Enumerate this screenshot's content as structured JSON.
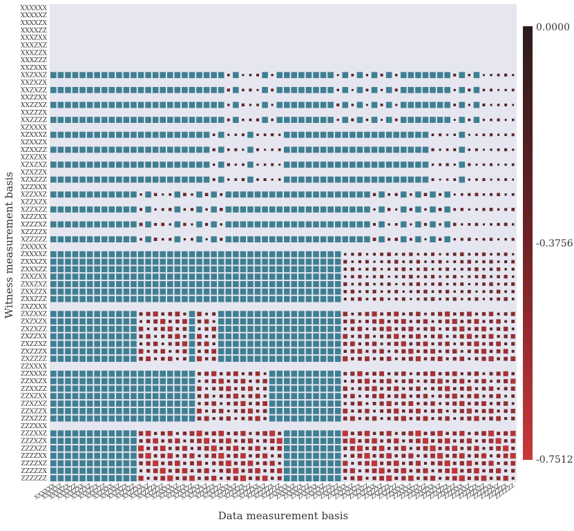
{
  "chart_data": {
    "type": "heatmap",
    "title": "",
    "xlabel": "Data measurement basis",
    "ylabel": "Witness measurement basis",
    "x_categories": [
      "XXXXXX",
      "XXXXXZ",
      "XXXXZX",
      "XXXXZZ",
      "XXXZXX",
      "XXXZXZ",
      "XXXZZX",
      "XXXZZZ",
      "XXZXXX",
      "XXZXXZ",
      "XXZXZX",
      "XXZXZZ",
      "XXZZXX",
      "XXZZXZ",
      "XXZZZX",
      "XXZZZZ",
      "XZXXXX",
      "XZXXXZ",
      "XZXXZX",
      "XZXXZZ",
      "XZXZXX",
      "XZXZXZ",
      "XZXZZX",
      "XZXZZZ",
      "XZZXXX",
      "XZZXXZ",
      "XZZXZX",
      "XZZXZZ",
      "XZZZXX",
      "XZZZXZ",
      "XZZZZX",
      "XZZZZZ",
      "ZXXXXX",
      "ZXXXXZ",
      "ZXXXZX",
      "ZXXXZZ",
      "ZXXZXX",
      "ZXXZXZ",
      "ZXXZZX",
      "ZXXZZZ",
      "ZXZXXX",
      "ZXZXXZ",
      "ZXZXZX",
      "ZXZXZZ",
      "ZXZZXX",
      "ZXZZXZ",
      "ZXZZZX",
      "ZXZZZZ",
      "ZZXXXX",
      "ZZXXXZ",
      "ZZXXZX",
      "ZZXXZZ",
      "ZZXZXX",
      "ZZXZXZ",
      "ZZXZZX",
      "ZZXZZZ",
      "ZZZXXX",
      "ZZZXXZ",
      "ZZZXZX",
      "ZZZXZZ",
      "ZZZZXX",
      "ZZZZXZ",
      "ZZZZZX",
      "ZZZZZZ"
    ],
    "y_categories": [
      "XXXXXX",
      "XXXXXZ",
      "XXXXZX",
      "XXXXZZ",
      "XXXZXX",
      "XXXZXZ",
      "XXXZZX",
      "XXXZZZ",
      "XXZXXX",
      "XXZXXZ",
      "XXZXZX",
      "XXZXZZ",
      "XXZZXX",
      "XXZZXZ",
      "XXZZZX",
      "XXZZZZ",
      "XZXXXX",
      "XZXXXZ",
      "XZXXZX",
      "XZXXZZ",
      "XZXZXX",
      "XZXZXZ",
      "XZXZZX",
      "XZXZZZ",
      "XZZXXX",
      "XZZXXZ",
      "XZZXZX",
      "XZZXZZ",
      "XZZZXX",
      "XZZZXZ",
      "XZZZZX",
      "XZZZZZ",
      "ZXXXXX",
      "ZXXXXZ",
      "ZXXXZX",
      "ZXXXZZ",
      "ZXXZXX",
      "ZXXZXZ",
      "ZXXZZX",
      "ZXXZZZ",
      "ZXZXXX",
      "ZXZXXZ",
      "ZXZXZX",
      "ZXZXZZ",
      "ZXZZXX",
      "ZXZZXZ",
      "ZXZZZX",
      "ZXZZZZ",
      "ZZXXXX",
      "ZZXXXZ",
      "ZZXXZX",
      "ZZXXZZ",
      "ZZXZXX",
      "ZZXZXZ",
      "ZZXZZX",
      "ZZXZZZ",
      "ZZZXXX",
      "ZZZXXZ",
      "ZZZXZX",
      "ZZZXZZ",
      "ZZZZXX",
      "ZZZZXZ",
      "ZZZZZX",
      "ZZZZZZ"
    ],
    "colorbar": {
      "min": -0.7512,
      "max": 0.0,
      "tick_labels": [
        "0.0000",
        "-0.3756",
        "-0.7512"
      ]
    },
    "encoding": "Each cell is a filled square; teal cells mark zero-valued (positive) entries, dark-to-red squares scaled by magnitude mark negative values; empty cells have no entry.",
    "colors": {
      "positive": "#3f7f92",
      "zero_high": "#2b1c1c",
      "neg_low": "#c8383a",
      "grid": "#e6e6f0",
      "background": "#ffffff"
    },
    "pattern": {
      "empty_rows": [
        0,
        1,
        2,
        3,
        4,
        5,
        6,
        7,
        8,
        10,
        12,
        14,
        16,
        18,
        20,
        22,
        24,
        26,
        28,
        30,
        32,
        40,
        48,
        56
      ],
      "groups": [
        {
          "rows": [
            9,
            11,
            13,
            15
          ],
          "cols_filled": "all",
          "neg_cols": [
            24,
            26,
            27,
            28,
            30,
            39,
            41,
            43,
            45,
            47,
            55,
            57,
            59,
            60,
            61,
            62,
            63
          ],
          "neg_scale": 0.35
        },
        {
          "rows": [
            17,
            19,
            21,
            23
          ],
          "cols_filled": "all",
          "neg_cols": [
            22,
            24,
            25,
            26,
            28,
            29,
            30,
            31,
            52,
            53,
            54,
            55,
            57,
            58,
            59,
            60,
            61,
            62,
            63
          ],
          "neg_scale": 0.35
        },
        {
          "rows": [
            25,
            27,
            29,
            31
          ],
          "cols_filled": "all",
          "neg_cols": [
            12,
            14,
            15,
            16,
            18,
            19,
            21,
            23,
            44,
            46,
            47,
            49,
            51,
            53,
            55,
            56,
            57,
            58,
            59,
            60,
            61,
            62,
            63
          ],
          "neg_scale": 0.45
        },
        {
          "rows": [
            33,
            34,
            35,
            36,
            37,
            38,
            39
          ],
          "neg_region_cols": [
            40,
            41,
            42,
            43,
            44,
            45,
            46,
            47,
            48,
            49,
            50,
            51,
            52,
            53,
            54,
            55,
            56,
            57,
            58,
            59,
            60,
            61,
            62,
            63
          ],
          "neg_scale": 0.55
        },
        {
          "rows": [
            41,
            42,
            43,
            44,
            45,
            46,
            47
          ],
          "neg_region_cols": [
            12,
            13,
            14,
            15,
            16,
            17,
            18,
            20,
            21,
            22,
            40,
            41,
            42,
            43,
            44,
            45,
            46,
            47,
            48,
            49,
            50,
            51,
            52,
            53,
            54,
            55,
            56,
            57,
            58,
            59,
            60,
            61,
            62,
            63
          ],
          "neg_scale": 0.85
        },
        {
          "rows": [
            49,
            50,
            51,
            52,
            53,
            54,
            55
          ],
          "neg_region_cols": [
            20,
            21,
            22,
            23,
            24,
            25,
            26,
            27,
            28,
            29,
            40,
            41,
            42,
            43,
            44,
            45,
            46,
            47,
            48,
            49,
            50,
            51,
            52,
            53,
            54,
            55,
            56,
            57,
            58,
            59,
            60,
            61,
            62,
            63
          ],
          "neg_scale": 0.85
        },
        {
          "rows": [
            57,
            58,
            59,
            60,
            61,
            62,
            63
          ],
          "neg_region_cols": [
            12,
            13,
            14,
            15,
            16,
            17,
            18,
            19,
            20,
            21,
            22,
            23,
            24,
            25,
            26,
            27,
            28,
            29,
            30,
            31,
            40,
            41,
            42,
            43,
            44,
            45,
            46,
            47,
            48,
            49,
            50,
            51,
            52,
            53,
            54,
            55,
            56,
            57,
            58,
            59,
            60,
            61,
            62,
            63
          ],
          "neg_scale": 1.0
        }
      ]
    }
  }
}
